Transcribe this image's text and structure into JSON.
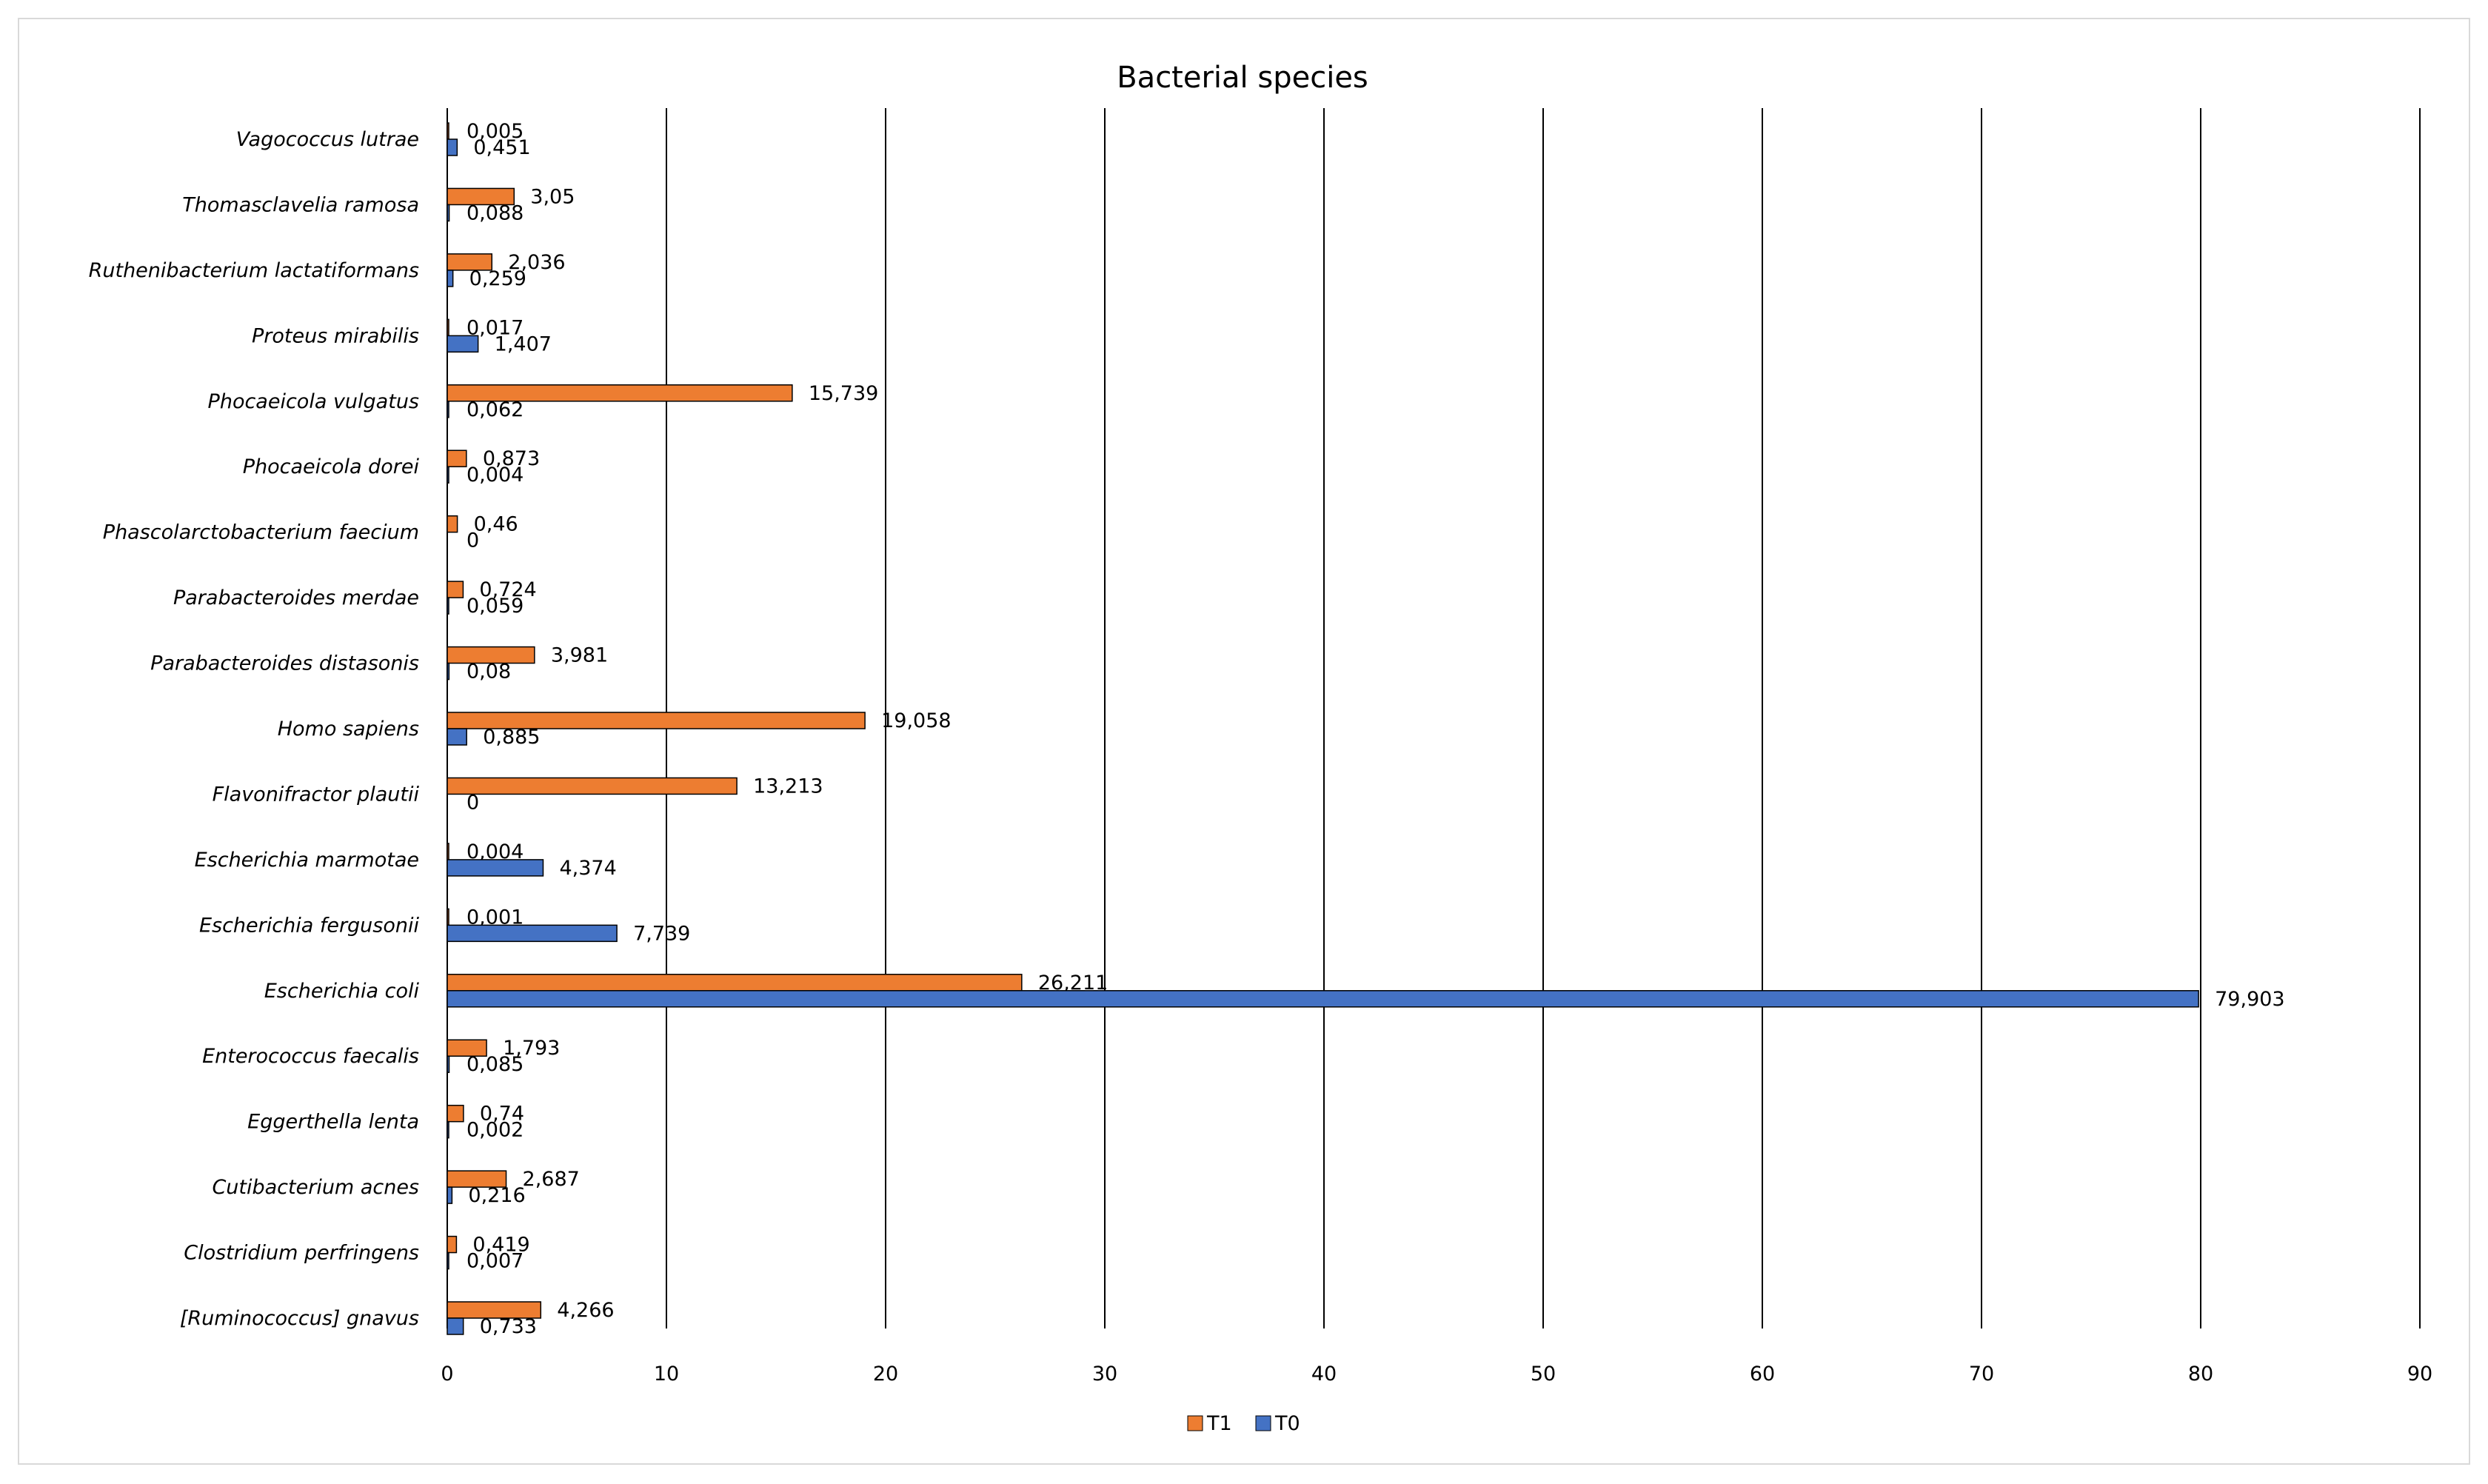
{
  "chart_data": {
    "type": "bar",
    "orientation": "horizontal",
    "title": "Bacterial species",
    "xlabel": "",
    "ylabel": "",
    "xlim": [
      0,
      90
    ],
    "x_ticks": [
      "0",
      "10",
      "20",
      "30",
      "40",
      "50",
      "60",
      "70",
      "80",
      "90"
    ],
    "grid": "vertical major gridlines",
    "legend_position": "bottom",
    "categories": [
      "[Ruminococcus] gnavus",
      "Clostridium perfringens",
      "Cutibacterium acnes",
      "Eggerthella lenta",
      "Enterococcus faecalis",
      "Escherichia coli",
      "Escherichia fergusonii",
      "Escherichia marmotae",
      "Flavonifractor plautii",
      "Homo sapiens",
      "Parabacteroides distasonis",
      "Parabacteroides merdae",
      "Phascolarctobacterium faecium",
      "Phocaeicola dorei",
      "Phocaeicola vulgatus",
      "Proteus mirabilis",
      "Ruthenibacterium lactatiformans",
      "Thomasclavelia ramosa",
      "Vagococcus lutrae"
    ],
    "series": [
      {
        "name": "T1",
        "color": "#ed7d31",
        "values": [
          4.266,
          0.419,
          2.687,
          0.74,
          1.793,
          26.211,
          0.001,
          0.004,
          13.213,
          19.058,
          3.981,
          0.724,
          0.46,
          0.873,
          15.739,
          0.017,
          2.036,
          3.05,
          0.005
        ],
        "labels": [
          "4,266",
          "0,419",
          "2,687",
          "0,74",
          "1,793",
          "26,211",
          "0,001",
          "0,004",
          "13,213",
          "19,058",
          "3,981",
          "0,724",
          "0,46",
          "0,873",
          "15,739",
          "0,017",
          "2,036",
          "3,05",
          "0,005"
        ]
      },
      {
        "name": "T0",
        "color": "#4472c4",
        "values": [
          0.733,
          0.007,
          0.216,
          0.002,
          0.085,
          79.903,
          7.739,
          4.374,
          0,
          0.885,
          0.08,
          0.059,
          0,
          0.004,
          0.062,
          1.407,
          0.259,
          0.088,
          0.451
        ],
        "labels": [
          "0,733",
          "0,007",
          "0,216",
          "0,002",
          "0,085",
          "79,903",
          "7,739",
          "4,374",
          "0",
          "0,885",
          "0,08",
          "0,059",
          "0",
          "0,004",
          "0,062",
          "1,407",
          "0,259",
          "0,088",
          "0,451"
        ]
      }
    ]
  }
}
